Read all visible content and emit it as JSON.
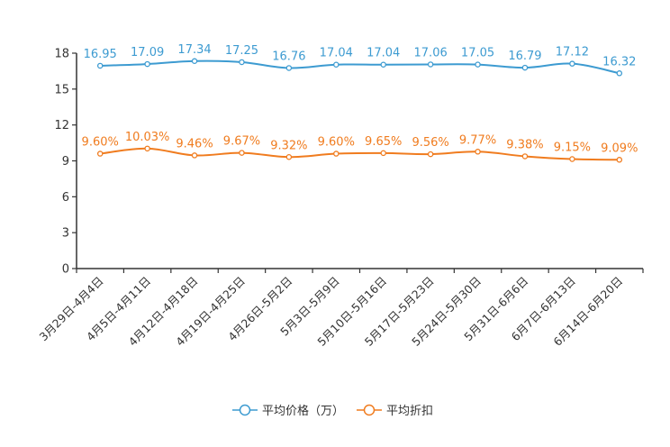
{
  "chart_data": {
    "type": "line",
    "title": "",
    "xlabel": "",
    "ylabel": "",
    "ylim": [
      0,
      18
    ],
    "yticks": [
      0,
      3,
      6,
      9,
      12,
      15,
      18
    ],
    "grid": false,
    "legend_position": "bottom-center",
    "categories": [
      "3月29日-4月4日",
      "4月5日-4月11日",
      "4月12日-4月18日",
      "4月19日-4月25日",
      "4月26日-5月2日",
      "5月3日-5月9日",
      "5月10日-5月16日",
      "5月17日-5月23日",
      "5月24日-5月30日",
      "5月31日-6月6日",
      "6月7日-6月13日",
      "6月14日-6月20日"
    ],
    "series": [
      {
        "name": "平均价格（万）",
        "color": "#3d9bd1",
        "values": [
          16.95,
          17.09,
          17.34,
          17.25,
          16.76,
          17.04,
          17.04,
          17.06,
          17.05,
          16.79,
          17.12,
          16.32
        ],
        "labels": [
          "16.95",
          "17.09",
          "17.34",
          "17.25",
          "16.76",
          "17.04",
          "17.04",
          "17.06",
          "17.05",
          "16.79",
          "17.12",
          "16.32"
        ]
      },
      {
        "name": "平均折扣",
        "color": "#f07c1f",
        "values": [
          9.6,
          10.03,
          9.46,
          9.67,
          9.32,
          9.6,
          9.65,
          9.56,
          9.77,
          9.38,
          9.15,
          9.09
        ],
        "labels": [
          "9.60%",
          "10.03%",
          "9.46%",
          "9.67%",
          "9.32%",
          "9.60%",
          "9.65%",
          "9.56%",
          "9.77%",
          "9.38%",
          "9.15%",
          "9.09%"
        ]
      }
    ]
  }
}
